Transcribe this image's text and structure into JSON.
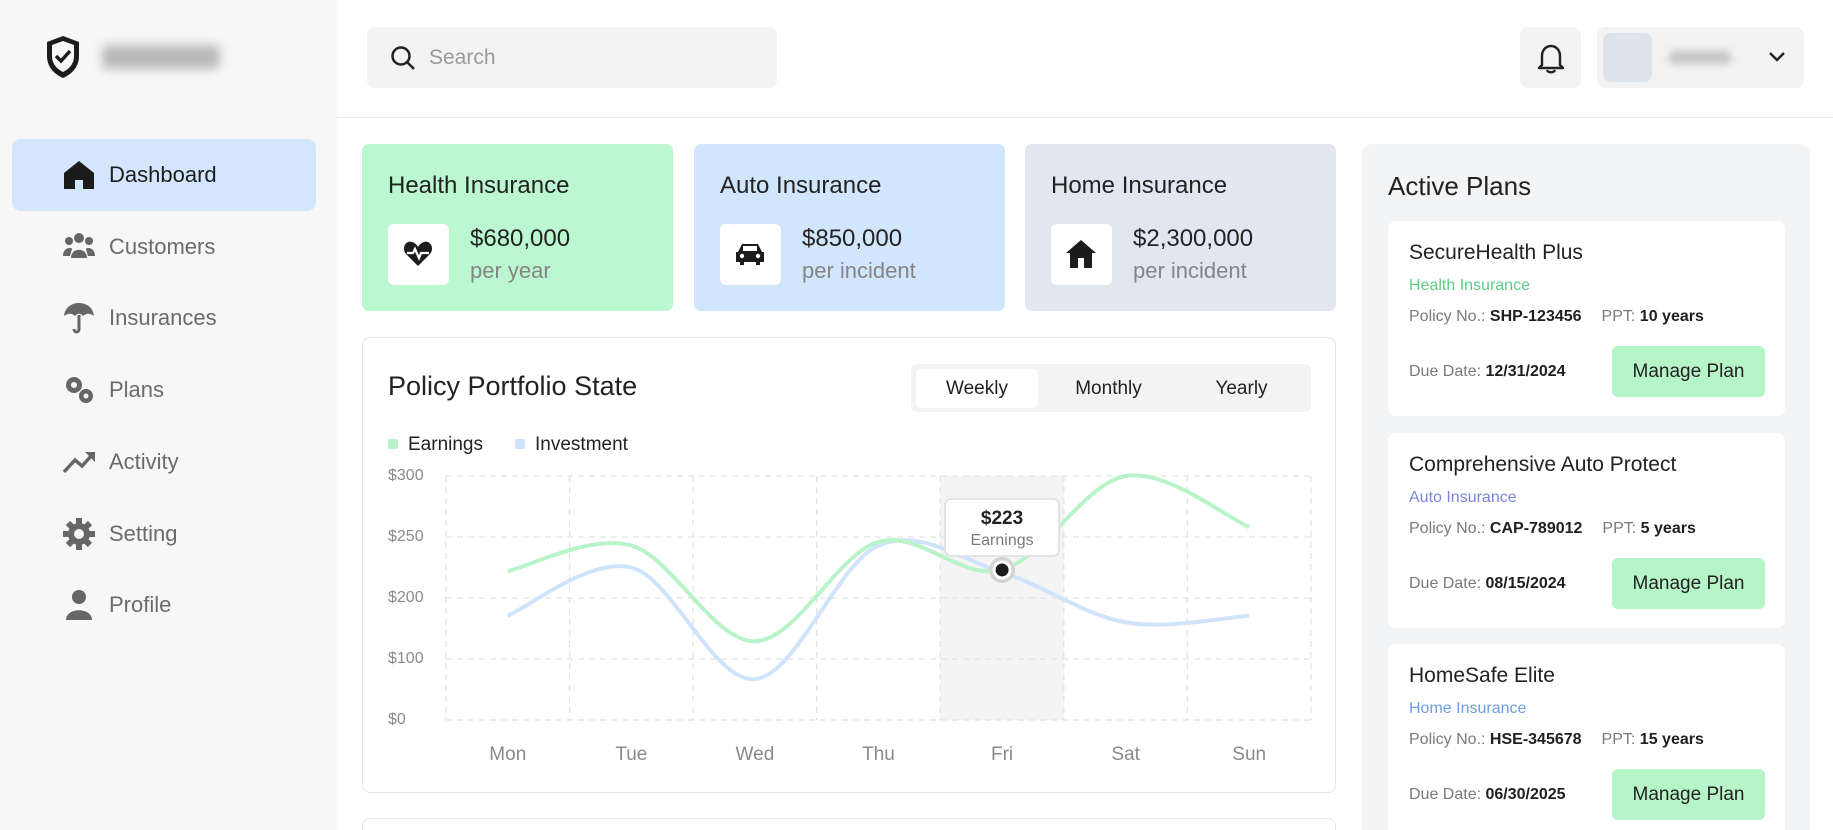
{
  "nav": {
    "active": "Dashboard",
    "items": [
      "Dashboard",
      "Customers",
      "Insurances",
      "Plans",
      "Activity",
      "Setting",
      "Profile"
    ]
  },
  "header": {
    "search_placeholder": "Search"
  },
  "cards": [
    {
      "title": "Health Insurance",
      "value": "$680,000",
      "unit": "per year",
      "color": "#bbf7d0"
    },
    {
      "title": "Auto Insurance",
      "value": "$850,000",
      "unit": "per incident",
      "color": "#d1e5fc"
    },
    {
      "title": "Home Insurance",
      "value": "$2,300,000",
      "unit": "per incident",
      "color": "#e2e6ee"
    }
  ],
  "chart_tabs": {
    "active": "Weekly",
    "items": [
      "Weekly",
      "Monthly",
      "Yearly"
    ]
  },
  "chart_data": {
    "type": "line",
    "title": "Policy Portfolio State",
    "categories": [
      "Mon",
      "Tue",
      "Wed",
      "Thu",
      "Fri",
      "Sat",
      "Sun"
    ],
    "series": [
      {
        "name": "Earnings",
        "color": "#b9f3c9",
        "values": [
          222,
          243,
          129,
          246,
          223,
          300,
          258
        ],
        "value_labels": [
          null,
          null,
          null,
          null,
          "$223",
          null,
          null
        ]
      },
      {
        "name": "Investment",
        "color": "#cfe3fa",
        "values": [
          171,
          225,
          67,
          243,
          221,
          160,
          171
        ]
      }
    ],
    "ylim": [
      0,
      300
    ],
    "yticks": [
      {
        "value": 0,
        "label": "$0"
      },
      {
        "value": 100,
        "label": "$100"
      },
      {
        "value": 200,
        "label": "$200"
      },
      {
        "value": 250,
        "label": "$250"
      },
      {
        "value": 300,
        "label": "$300"
      }
    ],
    "grid": true
  },
  "plans_panel": {
    "title": "Active Plans"
  },
  "plan_labels": {
    "policy": "Policy No.:",
    "ppt": "PPT:",
    "due": "Due Date:",
    "button": "Manage Plan"
  },
  "plans": [
    {
      "name": "SecureHealth Plus",
      "type": "Health Insurance",
      "type_color": "#5cce86",
      "policy_no": "SHP-123456",
      "ppt": "10 years",
      "due_date": "12/31/2024"
    },
    {
      "name": "Comprehensive Auto Protect",
      "type": "Auto Insurance",
      "type_color": "#7c84d8",
      "policy_no": "CAP-789012",
      "ppt": "5 years",
      "due_date": "08/15/2024"
    },
    {
      "name": "HomeSafe Elite",
      "type": "Home Insurance",
      "type_color": "#6c9de0",
      "policy_no": "HSE-345678",
      "ppt": "15 years",
      "due_date": "06/30/2025"
    }
  ]
}
